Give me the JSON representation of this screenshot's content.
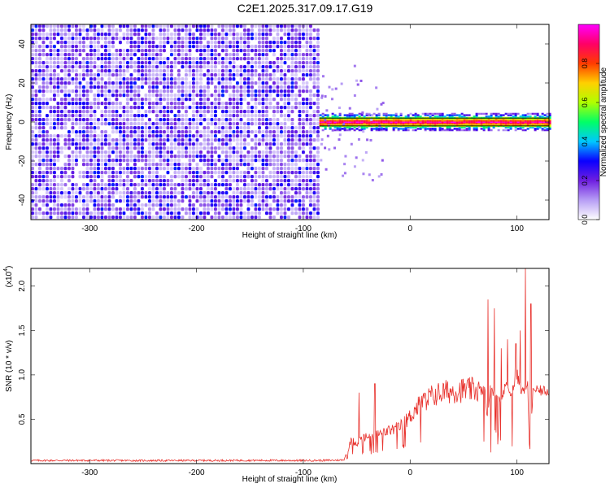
{
  "title": "C2E1.2025.317.09.17.G19",
  "chart_data": [
    {
      "type": "heatmap",
      "xlabel": "Height of straight line (km)",
      "ylabel": "Frequency (Hz)",
      "xlim": [
        -355,
        130
      ],
      "ylim": [
        -50,
        50
      ],
      "xticks": [
        -300,
        -200,
        -100,
        0,
        100
      ],
      "yticks": [
        -40,
        -20,
        0,
        20,
        40
      ],
      "noise_region_x": [
        -355,
        -85
      ],
      "signal_region_x": [
        -85,
        130
      ],
      "signal_frequency": 0,
      "colorbar": {
        "label": "Normalized spectral amplitude",
        "range": [
          0,
          1
        ],
        "ticks": [
          0.0,
          0.2,
          0.4,
          0.6,
          0.8
        ],
        "tick_labels": [
          "0.0",
          "0.2",
          "0.4",
          "0.6",
          "0.8"
        ],
        "colors": [
          "#ffffff",
          "#b79df5",
          "#6f1fe0",
          "#0a00ff",
          "#00c8ff",
          "#00ff66",
          "#b0ff00",
          "#ffd000",
          "#ff3c00",
          "#ff0066",
          "#ff00ff"
        ]
      }
    },
    {
      "type": "line",
      "xlabel": "Height of straight line (km)",
      "ylabel": "SNR (10 * v/v)",
      "y_multiplier_label": "(x10",
      "y_multiplier_exp": "4",
      "y_multiplier_close": ")",
      "xlim": [
        -355,
        130
      ],
      "ylim": [
        0,
        22000
      ],
      "xticks": [
        -300,
        -200,
        -100,
        0,
        100
      ],
      "yticks": [
        5000,
        10000,
        15000,
        20000
      ],
      "ytick_labels": [
        "0.5",
        "1.0",
        "1.5",
        "2.0"
      ],
      "color": "#e8322d",
      "series": [
        {
          "x": [
            -355,
            -300,
            -250,
            -200,
            -150,
            -100,
            -80,
            -62,
            -55,
            -50,
            -45,
            -40,
            -35,
            -30,
            -25,
            -20,
            -15,
            -10,
            -5,
            0,
            5,
            10,
            15,
            20,
            30,
            40,
            50,
            60,
            65,
            70,
            72,
            75,
            80,
            85,
            90,
            95,
            100,
            105,
            110,
            112,
            115,
            120,
            125,
            130
          ],
          "y": [
            350,
            360,
            340,
            350,
            360,
            350,
            360,
            400,
            2600,
            2300,
            2900,
            3000,
            3100,
            3300,
            3500,
            3700,
            3900,
            4100,
            4700,
            5300,
            6100,
            6800,
            7200,
            7600,
            8000,
            8200,
            8300,
            8300,
            8300,
            8100,
            5000,
            8500,
            8000,
            7000,
            9000,
            8000,
            10000,
            8000,
            9000,
            1000,
            8200,
            8200,
            8200,
            8200
          ]
        }
      ],
      "peaks": [
        {
          "x": -48,
          "y": 8000
        },
        {
          "x": -33,
          "y": 9000
        },
        {
          "x": 73,
          "y": 18500
        },
        {
          "x": 79,
          "y": 17500
        },
        {
          "x": 85,
          "y": 13000
        },
        {
          "x": 91,
          "y": 14000
        },
        {
          "x": 99,
          "y": 13500
        },
        {
          "x": 103,
          "y": 15000
        },
        {
          "x": 108,
          "y": 22000
        },
        {
          "x": 113,
          "y": 18000
        }
      ]
    }
  ]
}
